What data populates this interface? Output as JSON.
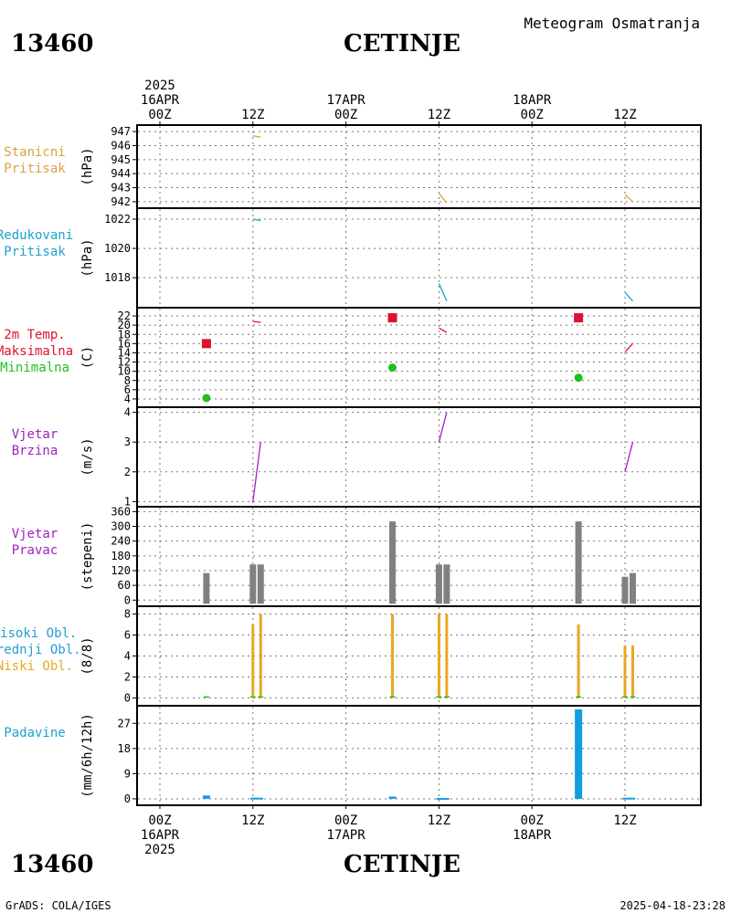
{
  "header": {
    "station_id": "13460",
    "station_name": "CETINJE",
    "subtitle": "Meteogram Osmatranja"
  },
  "footer": {
    "station_id": "13460",
    "station_name": "CETINJE",
    "credit": "GrADS: COLA/IGES",
    "generated": "2025-04-18-23:28"
  },
  "colors": {
    "pressure": "#e0a040",
    "reduced_pressure": "#20a0d0",
    "tmax": "#e01030",
    "tmin": "#20c020",
    "wind": "#a020c0",
    "dir_bar": "#808080",
    "cloud_low": "#e8a820",
    "cloud_mid": "#20c020",
    "precip": "#109ee0"
  },
  "chart_data": {
    "type": "meteogram",
    "time_axis": {
      "start_hour": 0,
      "end_hour": 71,
      "top_labels": [
        {
          "hour": 0,
          "lines": [
            "2025",
            "16APR",
            "00Z"
          ]
        },
        {
          "hour": 12,
          "lines": [
            "12Z"
          ]
        },
        {
          "hour": 24,
          "lines": [
            "17APR",
            "00Z"
          ]
        },
        {
          "hour": 36,
          "lines": [
            "12Z"
          ]
        },
        {
          "hour": 48,
          "lines": [
            "18APR",
            "00Z"
          ]
        },
        {
          "hour": 60,
          "lines": [
            "12Z"
          ]
        }
      ],
      "bottom_labels": [
        {
          "hour": 0,
          "lines": [
            "00Z",
            "16APR",
            "2025"
          ]
        },
        {
          "hour": 12,
          "lines": [
            "12Z"
          ]
        },
        {
          "hour": 24,
          "lines": [
            "00Z",
            "17APR"
          ]
        },
        {
          "hour": 36,
          "lines": [
            "12Z"
          ]
        },
        {
          "hour": 48,
          "lines": [
            "00Z",
            "18APR"
          ]
        },
        {
          "hour": 60,
          "lines": [
            "12Z"
          ]
        }
      ]
    },
    "panels": [
      {
        "id": "station-pressure",
        "labels": [
          "Stanicni",
          "Pritisak"
        ],
        "label_color": "#e0a040",
        "unit": "(hPa)",
        "ylim": [
          941.8,
          947.2
        ],
        "yticks": [
          942,
          943,
          944,
          945,
          946,
          947
        ],
        "lines": [
          {
            "color": "#e0a040",
            "points": [
              [
                12,
                946.7
              ],
              [
                13,
                946.6
              ]
            ]
          },
          {
            "color": "#e0a040",
            "points": [
              [
                36,
                942.6
              ],
              [
                37,
                941.9
              ]
            ]
          },
          {
            "color": "#e0a040",
            "points": [
              [
                60,
                942.5
              ],
              [
                61,
                942.0
              ]
            ]
          }
        ]
      },
      {
        "id": "reduced-pressure",
        "labels": [
          "Redukovani",
          "Pritisak"
        ],
        "label_color": "#20a0d0",
        "unit": "(hPa)",
        "ylim": [
          1016.2,
          1022.5
        ],
        "yticks": [
          1018,
          1020,
          1022
        ],
        "lines": [
          {
            "color": "#20a0d0",
            "points": [
              [
                12,
                1022.0
              ],
              [
                13,
                1021.9
              ]
            ]
          },
          {
            "color": "#20a0d0",
            "points": [
              [
                36,
                1017.6
              ],
              [
                37,
                1016.4
              ]
            ]
          },
          {
            "color": "#20a0d0",
            "points": [
              [
                60,
                1017.0
              ],
              [
                61,
                1016.4
              ]
            ]
          }
        ]
      },
      {
        "id": "temperature",
        "labels": [
          "2m Temp.",
          "Maksimalna",
          "Minimalna"
        ],
        "label_colors": [
          "#e01030",
          "#e01030",
          "#20c020"
        ],
        "unit": "(C)",
        "ylim": [
          3,
          23
        ],
        "yticks": [
          4,
          6,
          8,
          10,
          12,
          14,
          16,
          18,
          20,
          22
        ],
        "lines": [
          {
            "color": "#e01030",
            "points": [
              [
                12,
                20.8
              ],
              [
                13,
                20.6
              ]
            ]
          },
          {
            "color": "#e01030",
            "points": [
              [
                36,
                19.4
              ],
              [
                37,
                18.4
              ]
            ]
          },
          {
            "color": "#e01030",
            "points": [
              [
                60,
                14.2
              ],
              [
                61,
                16.0
              ]
            ]
          }
        ],
        "max_markers": [
          [
            6,
            16.0
          ],
          [
            30,
            21.6
          ],
          [
            54,
            21.6
          ]
        ],
        "min_markers": [
          [
            6,
            4.2
          ],
          [
            30,
            10.8
          ],
          [
            54,
            8.6
          ]
        ]
      },
      {
        "id": "wind-speed",
        "labels": [
          "Vjetar",
          "Brzina"
        ],
        "label_color": "#a020c0",
        "unit": "(m/s)",
        "ylim": [
          0.95,
          4.05
        ],
        "yticks": [
          1,
          2,
          3,
          4
        ],
        "lines": [
          {
            "color": "#a020c0",
            "points": [
              [
                12,
                1.0
              ],
              [
                13,
                3.0
              ]
            ]
          },
          {
            "color": "#a020c0",
            "points": [
              [
                36,
                3.0
              ],
              [
                37,
                4.0
              ]
            ]
          },
          {
            "color": "#a020c0",
            "points": [
              [
                60,
                2.0
              ],
              [
                61,
                3.0
              ]
            ]
          }
        ]
      },
      {
        "id": "wind-direction",
        "labels": [
          "Vjetar",
          "Pravac"
        ],
        "label_color": "#a020c0",
        "unit": "(stepeni)",
        "ylim": [
          -10,
          365
        ],
        "yticks": [
          0,
          60,
          120,
          180,
          240,
          300,
          360
        ],
        "bars": [
          {
            "hour": 6,
            "value": 110
          },
          {
            "hour": 12,
            "value": 145
          },
          {
            "hour": 13,
            "value": 145
          },
          {
            "hour": 30,
            "value": 320
          },
          {
            "hour": 36,
            "value": 145
          },
          {
            "hour": 37,
            "value": 145
          },
          {
            "hour": 54,
            "value": 320
          },
          {
            "hour": 60,
            "value": 95
          },
          {
            "hour": 61,
            "value": 110
          }
        ]
      },
      {
        "id": "clouds",
        "labels": [
          "Visoki Obl.",
          "Srednji Obl.",
          "Niski Obl."
        ],
        "label_colors": [
          "#20a0d0",
          "#20a0d0",
          "#e8a820"
        ],
        "unit": "(8/8)",
        "ylim": [
          -0.4,
          8.4
        ],
        "yticks": [
          0,
          2,
          4,
          6,
          8
        ],
        "low_clouds": [
          {
            "hour": 12,
            "value": 7
          },
          {
            "hour": 13,
            "value": 8
          },
          {
            "hour": 30,
            "value": 8
          },
          {
            "hour": 36,
            "value": 8
          },
          {
            "hour": 37,
            "value": 8
          },
          {
            "hour": 54,
            "value": 7
          },
          {
            "hour": 60,
            "value": 5
          },
          {
            "hour": 61,
            "value": 5
          }
        ],
        "mid_clouds": [
          {
            "hour": 6,
            "value": 0.1
          },
          {
            "hour": 12,
            "value": 0.1
          },
          {
            "hour": 13,
            "value": 0.1
          },
          {
            "hour": 30,
            "value": 0.1
          },
          {
            "hour": 36,
            "value": 0.1
          },
          {
            "hour": 37,
            "value": 0.1
          },
          {
            "hour": 54,
            "value": 0.1
          },
          {
            "hour": 60,
            "value": 0.1
          },
          {
            "hour": 61,
            "value": 0.1
          }
        ]
      },
      {
        "id": "precipitation",
        "labels": [
          "Padavine"
        ],
        "label_color": "#20a0d0",
        "unit": "(mm/6h/12h)",
        "ylim": [
          -1,
          32
        ],
        "yticks": [
          0,
          9,
          18,
          27
        ],
        "bars": [
          {
            "hour": 6,
            "value": 1.2,
            "width": 1
          },
          {
            "hour": 12.5,
            "value": 0.4,
            "width": 2
          },
          {
            "hour": 30,
            "value": 0.8,
            "width": 1
          },
          {
            "hour": 36.5,
            "value": 0.3,
            "width": 2
          },
          {
            "hour": 54,
            "value": 32,
            "width": 1
          },
          {
            "hour": 60.5,
            "value": 0.4,
            "width": 2
          }
        ]
      }
    ]
  }
}
